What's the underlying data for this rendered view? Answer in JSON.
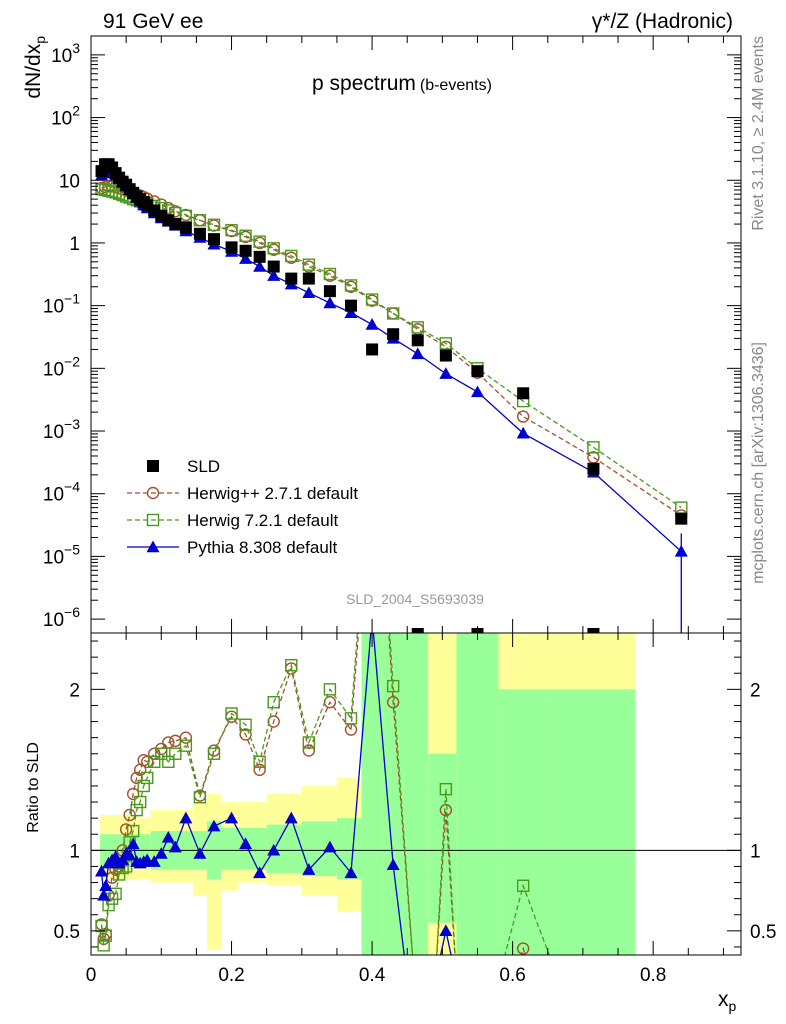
{
  "header": {
    "left": "91 GeV ee",
    "right": "γ*/Z (Hadronic)"
  },
  "side_labels": {
    "rivet": "Rivet 3.1.10, ≥ 2.4M events",
    "mcplots": "mcplots.cern.ch [arXiv:1306.3436]"
  },
  "watermark": "SLD_2004_S5693039",
  "chart_data": [
    {
      "type": "scatter",
      "panel": "main",
      "title_main": "p spectrum",
      "title_sub": "(b-events)",
      "ylabel": "dN/dx",
      "ylabel_sub": "p",
      "yscale": "log",
      "xlim": [
        0,
        0.925
      ],
      "ylim": [
        6e-07,
        2000
      ],
      "yticks": [
        {
          "v": 1e-06,
          "m": "10",
          "e": "−6"
        },
        {
          "v": 1e-05,
          "m": "10",
          "e": "−5"
        },
        {
          "v": 0.0001,
          "m": "10",
          "e": "−4"
        },
        {
          "v": 0.001,
          "m": "10",
          "e": "−3"
        },
        {
          "v": 0.01,
          "m": "10",
          "e": "−2"
        },
        {
          "v": 0.1,
          "m": "10",
          "e": "−1"
        },
        {
          "v": 1,
          "m": "1",
          "e": ""
        },
        {
          "v": 10,
          "m": "10",
          "e": ""
        },
        {
          "v": 100,
          "m": "10",
          "e": "2"
        },
        {
          "v": 1000,
          "m": "10",
          "e": "3"
        }
      ],
      "legend": [
        {
          "key": "sld",
          "label": "SLD"
        },
        {
          "key": "herwigpp",
          "label": "Herwig++ 2.7.1 default"
        },
        {
          "key": "herwig7",
          "label": "Herwig 7.2.1 default"
        },
        {
          "key": "pythia",
          "label": "Pythia 8.308 default"
        }
      ],
      "series": [
        {
          "key": "sld",
          "name": "SLD",
          "color": "#000000",
          "x": [
            0.015,
            0.02,
            0.025,
            0.03,
            0.035,
            0.04,
            0.045,
            0.05,
            0.055,
            0.06,
            0.065,
            0.07,
            0.075,
            0.08,
            0.09,
            0.1,
            0.11,
            0.12,
            0.135,
            0.155,
            0.175,
            0.2,
            0.22,
            0.24,
            0.26,
            0.285,
            0.31,
            0.34,
            0.37,
            0.4,
            0.43,
            0.465,
            0.505,
            0.55,
            0.615,
            0.715,
            0.84
          ],
          "y": [
            14,
            18,
            18,
            16,
            13,
            11,
            9.5,
            8.5,
            7.2,
            6.3,
            5.5,
            5.0,
            4.5,
            4.0,
            3.3,
            2.7,
            2.3,
            2.0,
            1.75,
            1.4,
            1.15,
            0.85,
            0.75,
            0.6,
            0.42,
            0.27,
            0.27,
            0.17,
            0.1,
            0.02,
            0.035,
            0.028,
            0.016,
            0.009,
            0.004,
            0.00025,
            4e-05
          ]
        },
        {
          "key": "herwigpp",
          "name": "Herwig++ 2.7.1 default",
          "color": "#a0522d",
          "x": [
            0.015,
            0.02,
            0.025,
            0.03,
            0.035,
            0.04,
            0.045,
            0.05,
            0.055,
            0.06,
            0.065,
            0.07,
            0.075,
            0.08,
            0.09,
            0.1,
            0.11,
            0.12,
            0.135,
            0.155,
            0.175,
            0.2,
            0.22,
            0.24,
            0.26,
            0.285,
            0.31,
            0.34,
            0.37,
            0.4,
            0.43,
            0.465,
            0.505,
            0.55,
            0.615,
            0.715,
            0.84
          ],
          "y": [
            7.5,
            7.8,
            8.0,
            8.0,
            7.8,
            7.5,
            7.2,
            6.9,
            6.6,
            6.3,
            6.0,
            5.7,
            5.4,
            5.1,
            4.6,
            4.1,
            3.6,
            3.2,
            2.8,
            2.3,
            1.9,
            1.55,
            1.25,
            1.0,
            0.78,
            0.58,
            0.42,
            0.3,
            0.2,
            0.12,
            0.075,
            0.042,
            0.022,
            0.0085,
            0.0017,
            0.00038,
            4.5e-05
          ]
        },
        {
          "key": "herwig7",
          "name": "Herwig 7.2.1 default",
          "color": "#4a9a1a",
          "x": [
            0.015,
            0.02,
            0.025,
            0.03,
            0.035,
            0.04,
            0.045,
            0.05,
            0.055,
            0.06,
            0.065,
            0.07,
            0.075,
            0.08,
            0.09,
            0.1,
            0.11,
            0.12,
            0.135,
            0.155,
            0.175,
            0.2,
            0.22,
            0.24,
            0.26,
            0.285,
            0.31,
            0.34,
            0.37,
            0.4,
            0.43,
            0.465,
            0.505,
            0.55,
            0.615,
            0.715,
            0.84
          ],
          "y": [
            7.2,
            7.0,
            6.8,
            6.6,
            6.4,
            6.1,
            5.8,
            5.5,
            5.3,
            5.0,
            4.8,
            4.6,
            4.4,
            4.2,
            3.9,
            3.6,
            3.3,
            3.0,
            2.7,
            2.3,
            1.95,
            1.6,
            1.3,
            1.05,
            0.82,
            0.62,
            0.45,
            0.32,
            0.21,
            0.125,
            0.075,
            0.045,
            0.025,
            0.01,
            0.003,
            0.00055,
            6e-05
          ]
        },
        {
          "key": "pythia",
          "name": "Pythia 8.308 default",
          "color": "#0000cc",
          "x": [
            0.015,
            0.02,
            0.025,
            0.03,
            0.035,
            0.04,
            0.045,
            0.05,
            0.055,
            0.06,
            0.065,
            0.07,
            0.075,
            0.08,
            0.09,
            0.1,
            0.11,
            0.12,
            0.135,
            0.155,
            0.175,
            0.2,
            0.22,
            0.24,
            0.26,
            0.285,
            0.31,
            0.34,
            0.37,
            0.4,
            0.43,
            0.465,
            0.505,
            0.55,
            0.615,
            0.715,
            0.84
          ],
          "y": [
            12,
            13,
            13.5,
            13,
            12,
            10.5,
            9.3,
            8.0,
            7.0,
            6.0,
            5.3,
            4.6,
            4.0,
            3.6,
            3.0,
            2.5,
            2.2,
            1.9,
            1.55,
            1.22,
            0.95,
            0.73,
            0.56,
            0.42,
            0.3,
            0.22,
            0.16,
            0.11,
            0.077,
            0.05,
            0.03,
            0.017,
            0.0082,
            0.0042,
            0.00092,
            0.00022,
            1.2e-05
          ]
        }
      ]
    },
    {
      "type": "line",
      "panel": "ratio",
      "ylabel": "Ratio to SLD",
      "xlabel": "x",
      "xlabel_sub": "p",
      "xlim": [
        0,
        0.925
      ],
      "ylim": [
        0.35,
        2.35
      ],
      "yticks": [
        0.5,
        1,
        2
      ],
      "xticks": [
        0,
        0.2,
        0.4,
        0.6,
        0.8
      ],
      "xtick_labels": [
        "0",
        "0.2",
        "0.4",
        "0.6",
        "0.8"
      ],
      "bands": [
        {
          "x0": 0.013,
          "x1": 0.06,
          "green": [
            0.9,
            1.1
          ],
          "yellow": [
            0.82,
            1.22
          ]
        },
        {
          "x0": 0.06,
          "x1": 0.085,
          "green": [
            0.9,
            1.1
          ],
          "yellow": [
            0.82,
            1.2
          ]
        },
        {
          "x0": 0.085,
          "x1": 0.145,
          "green": [
            0.88,
            1.12
          ],
          "yellow": [
            0.8,
            1.25
          ]
        },
        {
          "x0": 0.145,
          "x1": 0.165,
          "green": [
            0.88,
            1.12
          ],
          "yellow": [
            0.72,
            1.3
          ]
        },
        {
          "x0": 0.165,
          "x1": 0.185,
          "green": [
            0.82,
            1.18
          ],
          "yellow": [
            0.38,
            1.35
          ]
        },
        {
          "x0": 0.185,
          "x1": 0.21,
          "green": [
            0.88,
            1.14
          ],
          "yellow": [
            0.75,
            1.3
          ]
        },
        {
          "x0": 0.21,
          "x1": 0.25,
          "green": [
            0.88,
            1.14
          ],
          "yellow": [
            0.8,
            1.3
          ]
        },
        {
          "x0": 0.25,
          "x1": 0.3,
          "green": [
            0.86,
            1.16
          ],
          "yellow": [
            0.78,
            1.35
          ]
        },
        {
          "x0": 0.3,
          "x1": 0.35,
          "green": [
            0.84,
            1.18
          ],
          "yellow": [
            0.72,
            1.4
          ]
        },
        {
          "x0": 0.35,
          "x1": 0.385,
          "green": [
            0.82,
            1.2
          ],
          "yellow": [
            0.62,
            1.45
          ]
        },
        {
          "x0": 0.385,
          "x1": 0.415,
          "green": [
            0.35,
            2.35
          ],
          "yellow": [
            0.35,
            2.35
          ]
        },
        {
          "x0": 0.415,
          "x1": 0.445,
          "green": [
            0.35,
            2.35
          ],
          "yellow": [
            0.35,
            2.35
          ]
        },
        {
          "x0": 0.445,
          "x1": 0.48,
          "green": [
            0.35,
            2.35
          ],
          "yellow": [
            0.35,
            2.35
          ]
        },
        {
          "x0": 0.48,
          "x1": 0.52,
          "green": [
            0.55,
            1.6
          ],
          "yellow": [
            0.35,
            2.35
          ]
        },
        {
          "x0": 0.52,
          "x1": 0.58,
          "green": [
            0.35,
            2.35
          ],
          "yellow": [
            0.35,
            2.35
          ]
        },
        {
          "x0": 0.58,
          "x1": 0.655,
          "green": [
            0.35,
            2.0
          ],
          "yellow": [
            0.35,
            2.35
          ]
        },
        {
          "x0": 0.655,
          "x1": 0.775,
          "green": [
            0.35,
            2.0
          ],
          "yellow": [
            0.35,
            2.35
          ]
        }
      ],
      "series": [
        {
          "key": "herwigpp",
          "color": "#a0522d",
          "x": [
            0.015,
            0.018,
            0.021,
            0.025,
            0.03,
            0.035,
            0.04,
            0.045,
            0.05,
            0.055,
            0.06,
            0.065,
            0.07,
            0.075,
            0.08,
            0.09,
            0.1,
            0.11,
            0.12,
            0.135,
            0.155,
            0.175,
            0.2,
            0.22,
            0.24,
            0.26,
            0.285,
            0.31,
            0.34,
            0.37,
            0.43,
            0.505,
            0.615
          ],
          "y": [
            0.54,
            0.45,
            0.48,
            0.72,
            0.83,
            0.88,
            0.9,
            1.0,
            1.13,
            1.22,
            1.35,
            1.45,
            1.5,
            1.56,
            1.55,
            1.6,
            1.63,
            1.67,
            1.68,
            1.7,
            1.34,
            1.62,
            1.83,
            1.72,
            1.5,
            1.8,
            2.13,
            1.62,
            1.92,
            1.75,
            1.92,
            1.25,
            0.39
          ],
          "extra_path": [
            [
              0.37,
              1.75
            ],
            [
              0.385,
              2.6
            ],
            [
              0.4,
              4.0
            ],
            [
              0.43,
              1.92
            ],
            [
              0.46,
              0.2
            ],
            [
              0.49,
              0.2
            ],
            [
              0.505,
              1.25
            ],
            [
              0.52,
              0.2
            ],
            [
              0.6,
              0.2
            ],
            [
              0.615,
              0.39
            ],
            [
              0.63,
              0.2
            ]
          ]
        },
        {
          "key": "herwig7",
          "color": "#4a9a1a",
          "x": [
            0.015,
            0.018,
            0.021,
            0.025,
            0.03,
            0.035,
            0.04,
            0.045,
            0.05,
            0.055,
            0.06,
            0.065,
            0.07,
            0.075,
            0.08,
            0.09,
            0.1,
            0.11,
            0.12,
            0.135,
            0.155,
            0.175,
            0.2,
            0.22,
            0.24,
            0.26,
            0.285,
            0.31,
            0.34,
            0.37,
            0.43,
            0.505,
            0.615
          ],
          "y": [
            0.53,
            0.41,
            0.47,
            0.66,
            0.7,
            0.73,
            0.85,
            0.89,
            0.9,
            1.05,
            1.12,
            1.25,
            1.3,
            1.4,
            1.45,
            1.55,
            1.6,
            1.55,
            1.6,
            1.65,
            1.33,
            1.6,
            1.85,
            1.78,
            1.55,
            1.92,
            2.15,
            1.67,
            2.0,
            1.82,
            2.02,
            1.38,
            0.78
          ],
          "extra_path": [
            [
              0.37,
              1.82
            ],
            [
              0.385,
              2.7
            ],
            [
              0.4,
              4.0
            ],
            [
              0.43,
              2.02
            ],
            [
              0.46,
              0.2
            ],
            [
              0.49,
              0.2
            ],
            [
              0.505,
              1.38
            ],
            [
              0.52,
              0.2
            ],
            [
              0.58,
              0.2
            ],
            [
              0.615,
              0.78
            ],
            [
              0.665,
              0.2
            ]
          ]
        },
        {
          "key": "pythia",
          "color": "#0000cc",
          "x": [
            0.015,
            0.018,
            0.021,
            0.025,
            0.03,
            0.035,
            0.04,
            0.045,
            0.05,
            0.055,
            0.06,
            0.065,
            0.07,
            0.075,
            0.08,
            0.09,
            0.1,
            0.11,
            0.12,
            0.135,
            0.155,
            0.175,
            0.2,
            0.22,
            0.24,
            0.26,
            0.285,
            0.31,
            0.34,
            0.37,
            0.4,
            0.43,
            0.505
          ],
          "y": [
            0.87,
            0.72,
            0.78,
            0.92,
            0.94,
            0.96,
            0.92,
            0.94,
            0.98,
            0.97,
            1.04,
            0.93,
            0.92,
            0.93,
            0.94,
            0.93,
            0.98,
            1.08,
            1.02,
            1.2,
            0.98,
            1.15,
            1.2,
            1.04,
            0.86,
            1.0,
            1.2,
            0.88,
            1.02,
            0.86,
            2.45,
            0.91,
            0.5
          ],
          "extra_path": [
            [
              0.4,
              2.45
            ],
            [
              0.43,
              0.91
            ],
            [
              0.45,
              0.2
            ],
            [
              0.49,
              0.2
            ],
            [
              0.505,
              0.5
            ],
            [
              0.52,
              0.2
            ]
          ]
        }
      ]
    }
  ]
}
